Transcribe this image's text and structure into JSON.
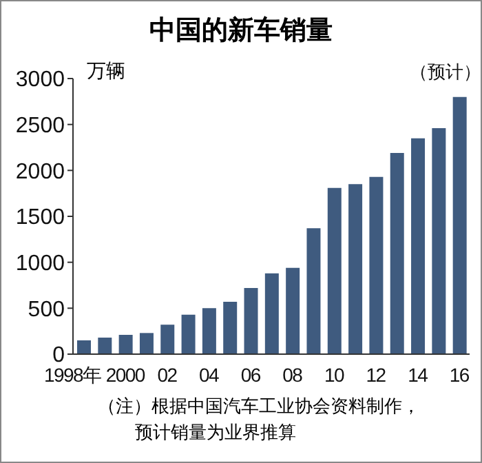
{
  "chart_data": {
    "type": "bar",
    "title": "中国的新车销量",
    "ylabel": "万辆",
    "categories": [
      "1998年",
      null,
      "2000",
      null,
      "02",
      null,
      "04",
      null,
      "06",
      null,
      "08",
      null,
      "10",
      null,
      "12",
      null,
      "14",
      null,
      "16"
    ],
    "values": [
      150,
      180,
      210,
      230,
      320,
      430,
      500,
      570,
      720,
      880,
      940,
      1370,
      1810,
      1850,
      1930,
      2190,
      2350,
      2460,
      2800
    ],
    "color": "#3f5b7f",
    "ylim": [
      0,
      3000
    ],
    "yticks": [
      0,
      500,
      1000,
      1500,
      2000,
      2500,
      3000
    ],
    "grid": false,
    "legend": false,
    "annotations": [
      {
        "text": "（预计）",
        "x": "16",
        "y": 2800
      },
      "（注）根据中国汽车工业协会资料制作，",
      "预计销量为业界推算"
    ]
  }
}
